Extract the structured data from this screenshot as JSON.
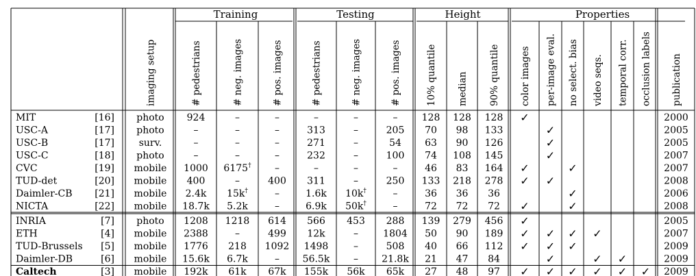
{
  "groups": [
    {
      "label": "Training",
      "span": [
        2,
        4
      ]
    },
    {
      "label": "Testing",
      "span": [
        5,
        7
      ]
    },
    {
      "label": "Height",
      "span": [
        8,
        10
      ]
    },
    {
      "label": "Properties",
      "span": [
        11,
        17
      ]
    }
  ],
  "columns": [
    "imaging setup",
    "# pedestrians",
    "# neg. images",
    "# pos. images",
    "# pedestrians",
    "# neg. images",
    "# pos. images",
    "10% quantile",
    "median",
    "90% quantile",
    "color images",
    "per-image eval.",
    "no select. bias",
    "video seqs.",
    "temporal corr.",
    "occlusion labels",
    "publication"
  ],
  "check_symbol": "✓",
  "rows": [
    {
      "name": "MIT",
      "ref": "[16]",
      "setup": "photo",
      "train": [
        "924",
        "–",
        "–"
      ],
      "test": [
        "–",
        "–",
        "–"
      ],
      "height": [
        "128",
        "128",
        "128"
      ],
      "props": [
        1,
        0,
        0,
        0,
        0,
        0
      ],
      "year": "2000"
    },
    {
      "name": "USC-A",
      "ref": "[17]",
      "setup": "photo",
      "train": [
        "–",
        "–",
        "–"
      ],
      "test": [
        "313",
        "–",
        "205"
      ],
      "height": [
        "70",
        "98",
        "133"
      ],
      "props": [
        0,
        1,
        0,
        0,
        0,
        0
      ],
      "year": "2005"
    },
    {
      "name": "USC-B",
      "ref": "[17]",
      "setup": "surv.",
      "train": [
        "–",
        "–",
        "–"
      ],
      "test": [
        "271",
        "–",
        "54"
      ],
      "height": [
        "63",
        "90",
        "126"
      ],
      "props": [
        0,
        1,
        0,
        0,
        0,
        0
      ],
      "year": "2005"
    },
    {
      "name": "USC-C",
      "ref": "[18]",
      "setup": "photo",
      "train": [
        "–",
        "–",
        "–"
      ],
      "test": [
        "232",
        "–",
        "100"
      ],
      "height": [
        "74",
        "108",
        "145"
      ],
      "props": [
        0,
        1,
        0,
        0,
        0,
        0
      ],
      "year": "2007"
    },
    {
      "name": "CVC",
      "ref": "[19]",
      "setup": "mobile",
      "train": [
        "1000",
        "6175†",
        "–"
      ],
      "test": [
        "–",
        "–",
        "–"
      ],
      "height": [
        "46",
        "83",
        "164"
      ],
      "props": [
        1,
        0,
        1,
        0,
        0,
        0
      ],
      "year": "2007"
    },
    {
      "name": "TUD-det",
      "ref": "[20]",
      "setup": "mobile",
      "train": [
        "400",
        "–",
        "400"
      ],
      "test": [
        "311",
        "–",
        "250"
      ],
      "height": [
        "133",
        "218",
        "278"
      ],
      "props": [
        1,
        1,
        0,
        0,
        0,
        0
      ],
      "year": "2008"
    },
    {
      "name": "Daimler-CB",
      "ref": "[21]",
      "setup": "mobile",
      "train": [
        "2.4k",
        "15k†",
        "–"
      ],
      "test": [
        "1.6k",
        "10k†",
        "–"
      ],
      "height": [
        "36",
        "36",
        "36"
      ],
      "props": [
        0,
        0,
        1,
        0,
        0,
        0
      ],
      "year": "2006"
    },
    {
      "name": "NICTA",
      "ref": "[22]",
      "setup": "mobile",
      "train": [
        "18.7k",
        "5.2k",
        "–"
      ],
      "test": [
        "6.9k",
        "50k†",
        "–"
      ],
      "height": [
        "72",
        "72",
        "72"
      ],
      "props": [
        1,
        0,
        1,
        0,
        0,
        0
      ],
      "year": "2008"
    },
    {
      "name": "INRIA",
      "ref": "[7]",
      "setup": "photo",
      "train": [
        "1208",
        "1218",
        "614"
      ],
      "test": [
        "566",
        "453",
        "288"
      ],
      "height": [
        "139",
        "279",
        "456"
      ],
      "props": [
        1,
        0,
        0,
        0,
        0,
        0
      ],
      "year": "2005"
    },
    {
      "name": "ETH",
      "ref": "[4]",
      "setup": "mobile",
      "train": [
        "2388",
        "–",
        "499"
      ],
      "test": [
        "12k",
        "–",
        "1804"
      ],
      "height": [
        "50",
        "90",
        "189"
      ],
      "props": [
        1,
        1,
        1,
        1,
        0,
        0
      ],
      "year": "2007"
    },
    {
      "name": "TUD-Brussels",
      "ref": "[5]",
      "setup": "mobile",
      "train": [
        "1776",
        "218",
        "1092"
      ],
      "test": [
        "1498",
        "–",
        "508"
      ],
      "height": [
        "40",
        "66",
        "112"
      ],
      "props": [
        1,
        1,
        1,
        0,
        0,
        0
      ],
      "year": "2009"
    },
    {
      "name": "Daimler-DB",
      "ref": "[6]",
      "setup": "mobile",
      "train": [
        "15.6k",
        "6.7k",
        "–"
      ],
      "test": [
        "56.5k",
        "–",
        "21.8k"
      ],
      "height": [
        "21",
        "47",
        "84"
      ],
      "props": [
        0,
        1,
        0,
        1,
        1,
        0
      ],
      "year": "2009"
    },
    {
      "name": "Caltech",
      "ref": "[3]",
      "setup": "mobile",
      "train": [
        "192k",
        "61k",
        "67k"
      ],
      "test": [
        "155k",
        "56k",
        "65k"
      ],
      "height": [
        "27",
        "48",
        "97"
      ],
      "props": [
        1,
        1,
        1,
        1,
        1,
        1
      ],
      "year": "2009",
      "bold": true
    }
  ]
}
